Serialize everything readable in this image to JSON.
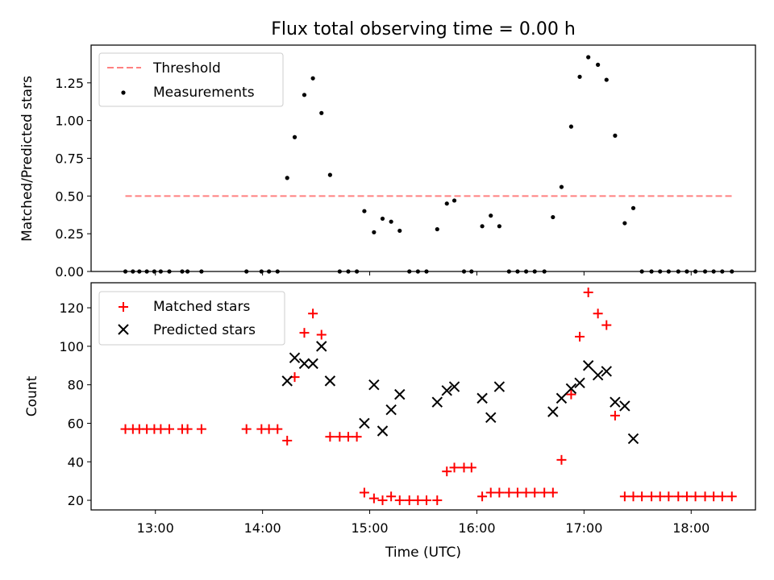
{
  "figure": {
    "title": "Flux total observing time = 0.00 h",
    "x_tick_labels": [
      "13:00",
      "14:00",
      "15:00",
      "16:00",
      "17:00",
      "18:00"
    ],
    "x_ticks_hours": [
      13,
      14,
      15,
      16,
      17,
      18
    ],
    "xlim_hours": [
      12.4,
      18.6
    ]
  },
  "chart_data": [
    {
      "type": "scatter",
      "title": "Flux total observing time = 0.00 h",
      "xlabel": "",
      "ylabel": "Matched/Predicted stars",
      "ylim": [
        0,
        1.5
      ],
      "y_ticks": [
        0.0,
        0.25,
        0.5,
        0.75,
        1.0,
        1.25
      ],
      "y_tick_labels": [
        "0.00",
        "0.25",
        "0.50",
        "0.75",
        "1.00",
        "1.25"
      ],
      "legend": {
        "position": "top-left",
        "entries": [
          "Threshold",
          "Measurements"
        ]
      },
      "threshold": {
        "name": "Threshold",
        "value": 0.5,
        "x_range_hours": [
          12.72,
          18.38
        ],
        "color": "#ff8080",
        "style": "dashed"
      },
      "series": [
        {
          "name": "Measurements",
          "color": "#000000",
          "marker": "dot",
          "x_hours": [
            12.72,
            12.79,
            12.85,
            12.92,
            12.99,
            13.05,
            13.13,
            13.25,
            13.3,
            13.43,
            13.85,
            13.99,
            14.06,
            14.14,
            14.23,
            14.3,
            14.39,
            14.47,
            14.55,
            14.63,
            14.72,
            14.8,
            14.88,
            14.95,
            15.04,
            15.12,
            15.2,
            15.28,
            15.37,
            15.45,
            15.53,
            15.63,
            15.72,
            15.79,
            15.88,
            15.95,
            16.05,
            16.13,
            16.21,
            16.3,
            16.38,
            16.46,
            16.54,
            16.63,
            16.71,
            16.79,
            16.88,
            16.96,
            17.04,
            17.13,
            17.21,
            17.29,
            17.38,
            17.46,
            17.54,
            17.63,
            17.71,
            17.79,
            17.88,
            17.96,
            18.04,
            18.13,
            18.21,
            18.29,
            18.38
          ],
          "y": [
            0,
            0,
            0,
            0,
            0,
            0,
            0,
            0,
            0,
            0,
            0,
            0,
            0,
            0,
            0.62,
            0.89,
            1.17,
            1.28,
            1.05,
            0.64,
            0,
            0,
            0,
            0.4,
            0.26,
            0.35,
            0.33,
            0.27,
            0,
            0,
            0,
            0.28,
            0.45,
            0.47,
            0,
            0,
            0.3,
            0.37,
            0.3,
            0,
            0,
            0,
            0,
            0,
            0.36,
            0.56,
            0.96,
            1.29,
            1.42,
            1.37,
            1.27,
            0.9,
            0.32,
            0.42,
            0,
            0,
            0,
            0,
            0,
            0,
            0,
            0,
            0,
            0,
            0
          ]
        }
      ]
    },
    {
      "type": "scatter",
      "xlabel": "Time (UTC)",
      "ylabel": "Count",
      "ylim": [
        15,
        133
      ],
      "y_ticks": [
        20,
        40,
        60,
        80,
        100,
        120
      ],
      "y_tick_labels": [
        "20",
        "40",
        "60",
        "80",
        "100",
        "120"
      ],
      "legend": {
        "position": "top-left",
        "entries": [
          "Matched stars",
          "Predicted stars"
        ]
      },
      "series": [
        {
          "name": "Matched stars",
          "color": "#ff0000",
          "marker": "plus",
          "x_hours": [
            12.72,
            12.79,
            12.85,
            12.92,
            12.99,
            13.05,
            13.13,
            13.25,
            13.3,
            13.43,
            13.85,
            13.99,
            14.06,
            14.14,
            14.23,
            14.3,
            14.39,
            14.47,
            14.55,
            14.63,
            14.72,
            14.8,
            14.88,
            14.95,
            15.04,
            15.12,
            15.2,
            15.28,
            15.37,
            15.45,
            15.53,
            15.63,
            15.72,
            15.79,
            15.88,
            15.95,
            16.05,
            16.13,
            16.21,
            16.3,
            16.38,
            16.46,
            16.54,
            16.63,
            16.71,
            16.79,
            16.88,
            16.96,
            17.04,
            17.13,
            17.21,
            17.29,
            17.38,
            17.46,
            17.54,
            17.63,
            17.71,
            17.79,
            17.88,
            17.96,
            18.04,
            18.13,
            18.21,
            18.29,
            18.38
          ],
          "y": [
            57,
            57,
            57,
            57,
            57,
            57,
            57,
            57,
            57,
            57,
            57,
            57,
            57,
            57,
            51,
            84,
            107,
            117,
            106,
            53,
            53,
            53,
            53,
            24,
            21,
            20,
            22,
            20,
            20,
            20,
            20,
            20,
            35,
            37,
            37,
            37,
            22,
            24,
            24,
            24,
            24,
            24,
            24,
            24,
            24,
            41,
            75,
            105,
            128,
            117,
            111,
            64,
            22,
            22,
            22,
            22,
            22,
            22,
            22,
            22,
            22,
            22,
            22,
            22,
            22
          ]
        },
        {
          "name": "Predicted stars",
          "color": "#000000",
          "marker": "cross",
          "x_hours": [
            14.23,
            14.3,
            14.39,
            14.47,
            14.55,
            14.63,
            14.95,
            15.04,
            15.12,
            15.2,
            15.28,
            15.63,
            15.72,
            15.79,
            16.05,
            16.13,
            16.21,
            16.71,
            16.79,
            16.88,
            16.96,
            17.04,
            17.13,
            17.21,
            17.29,
            17.38,
            17.46
          ],
          "y": [
            82,
            94,
            91,
            91,
            100,
            82,
            60,
            80,
            56,
            67,
            75,
            71,
            77,
            79,
            73,
            63,
            79,
            66,
            73,
            78,
            81,
            90,
            85,
            87,
            71,
            69,
            52
          ]
        }
      ]
    }
  ]
}
